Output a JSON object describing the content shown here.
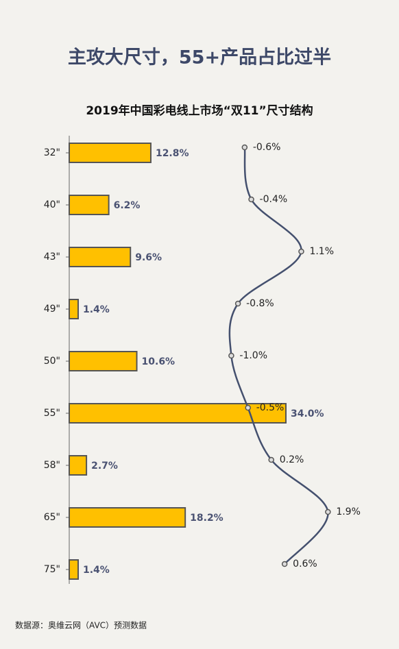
{
  "chart_data": {
    "type": "bar",
    "headline": "主攻大尺寸，55+产品占比过半",
    "title": "2019年中国彩电线上市场“双11”尺寸结构",
    "source": "数据源：奥维云网（AVC）预测数据",
    "categories": [
      "32\"",
      "40\"",
      "43\"",
      "49\"",
      "50\"",
      "55\"",
      "58\"",
      "65\"",
      "75\""
    ],
    "series": [
      {
        "type": "bar",
        "color": "#ffc000",
        "values": [
          12.8,
          6.2,
          9.6,
          1.4,
          10.6,
          34.0,
          2.7,
          18.2,
          1.4
        ],
        "value_labels": [
          "12.8%",
          "6.2%",
          "9.6%",
          "1.4%",
          "10.6%",
          "34.0%",
          "2.7%",
          "18.2%",
          "1.4%"
        ]
      },
      {
        "type": "line",
        "color": "#44506e",
        "values": [
          -0.6,
          -0.4,
          1.1,
          -0.8,
          -1.0,
          -0.5,
          0.2,
          1.9,
          0.6
        ],
        "value_labels": [
          "-0.6%",
          "-0.4%",
          "1.1%",
          "-0.8%",
          "-1.0%",
          "-0.5%",
          "0.2%",
          "1.9%",
          "0.6%"
        ]
      }
    ]
  }
}
